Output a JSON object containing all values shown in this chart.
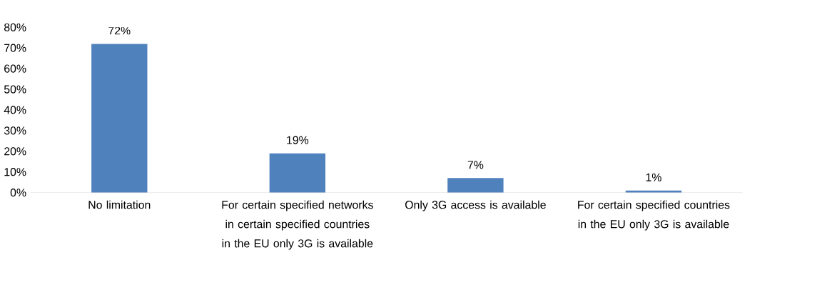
{
  "chart_data": {
    "type": "bar",
    "categories": [
      "No limitation",
      "For certain specified networks in certain specified countries in the EU only 3G is available",
      "Only 3G access is available",
      "For certain specified countries in the EU only 3G is available"
    ],
    "values": [
      72,
      19,
      7,
      1
    ],
    "value_labels": [
      "72%",
      "19%",
      "7%",
      "1%"
    ],
    "color": "#4f81bd",
    "ylim": [
      0,
      80
    ],
    "yticks": [
      {
        "value": 0,
        "label": "0%"
      },
      {
        "value": 10,
        "label": "10%"
      },
      {
        "value": 20,
        "label": "20%"
      },
      {
        "value": 30,
        "label": "30%"
      },
      {
        "value": 40,
        "label": "40%"
      },
      {
        "value": 50,
        "label": "50%"
      },
      {
        "value": 60,
        "label": "60%"
      },
      {
        "value": 70,
        "label": "70%"
      },
      {
        "value": 80,
        "label": "80%"
      }
    ],
    "grid": false
  }
}
